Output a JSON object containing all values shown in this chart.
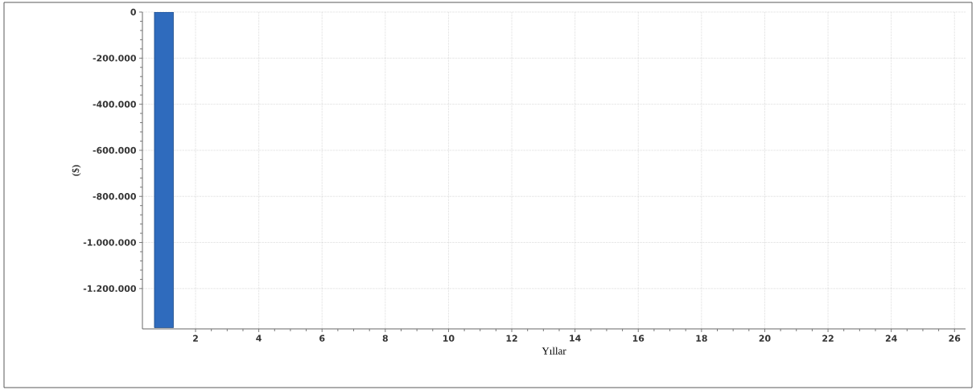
{
  "chart_data": {
    "type": "bar",
    "xlabel": "Yıllar",
    "ylabel": "($)",
    "x": [
      1
    ],
    "values": [
      -1370000
    ],
    "color": "#2f6bbd",
    "xlim": [
      0.32,
      26.35
    ],
    "ylim": [
      -1375000,
      0
    ],
    "xticks": [
      2,
      4,
      6,
      8,
      10,
      12,
      14,
      16,
      18,
      20,
      22,
      24,
      26
    ],
    "yticks": [
      {
        "value": 0,
        "label": "0"
      },
      {
        "value": -200000,
        "label": "-200.000"
      },
      {
        "value": -400000,
        "label": "-400.000"
      },
      {
        "value": -600000,
        "label": "-600.000"
      },
      {
        "value": -800000,
        "label": "-800.000"
      },
      {
        "value": -1000000,
        "label": "-1.000.000"
      },
      {
        "value": -1200000,
        "label": "-1.200.000"
      }
    ],
    "grid": true
  }
}
